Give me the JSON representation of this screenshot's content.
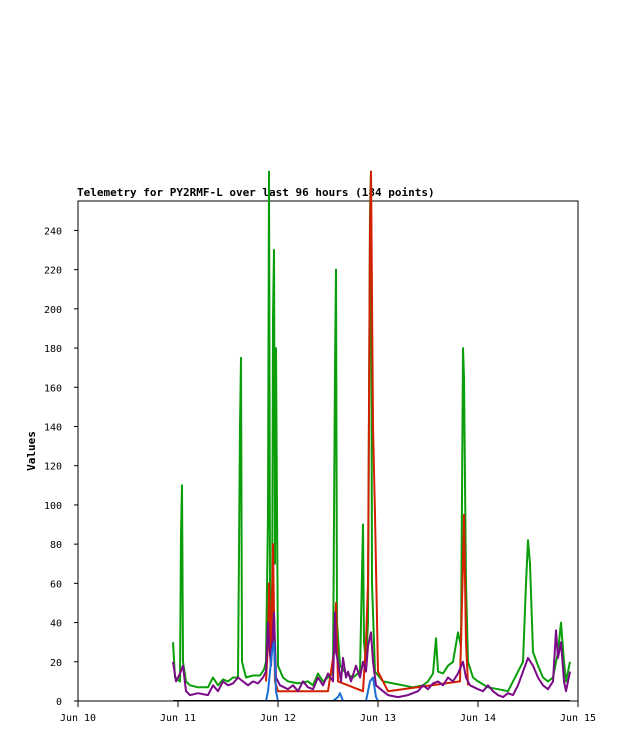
{
  "chart_data": {
    "type": "line",
    "title": "Telemetry for PY2RMF-L over last 96 hours (184 points)",
    "xlabel": "",
    "ylabel": "Values",
    "ylim": [
      0,
      255
    ],
    "xlim": [
      0,
      5
    ],
    "yticks": [
      0,
      20,
      40,
      60,
      80,
      100,
      120,
      140,
      160,
      180,
      200,
      220,
      240
    ],
    "xticks": [
      {
        "v": 0,
        "label": "Jun 10"
      },
      {
        "v": 1,
        "label": "Jun 11"
      },
      {
        "v": 2,
        "label": "Jun 12"
      },
      {
        "v": 3,
        "label": "Jun 13"
      },
      {
        "v": 4,
        "label": "Jun 14"
      },
      {
        "v": 5,
        "label": "Jun 15"
      }
    ],
    "grid": false,
    "series": [
      {
        "color": "#0a9e0a",
        "points": [
          [
            0.95,
            30
          ],
          [
            0.97,
            12
          ],
          [
            1.02,
            10
          ],
          [
            1.03,
            85
          ],
          [
            1.04,
            110
          ],
          [
            1.05,
            20
          ],
          [
            1.08,
            10
          ],
          [
            1.12,
            8
          ],
          [
            1.2,
            7
          ],
          [
            1.3,
            7
          ],
          [
            1.35,
            12
          ],
          [
            1.4,
            8
          ],
          [
            1.45,
            11
          ],
          [
            1.5,
            10
          ],
          [
            1.55,
            12
          ],
          [
            1.6,
            12
          ],
          [
            1.62,
            140
          ],
          [
            1.63,
            175
          ],
          [
            1.64,
            20
          ],
          [
            1.68,
            12
          ],
          [
            1.75,
            13
          ],
          [
            1.82,
            13
          ],
          [
            1.86,
            16
          ],
          [
            1.88,
            20
          ],
          [
            1.9,
            95
          ],
          [
            1.91,
            270
          ],
          [
            1.92,
            60
          ],
          [
            1.94,
            25
          ],
          [
            1.95,
            195
          ],
          [
            1.96,
            230
          ],
          [
            1.97,
            70
          ],
          [
            1.98,
            180
          ],
          [
            2.0,
            18
          ],
          [
            2.05,
            12
          ],
          [
            2.1,
            10
          ],
          [
            2.2,
            9
          ],
          [
            2.3,
            10
          ],
          [
            2.35,
            8
          ],
          [
            2.4,
            14
          ],
          [
            2.45,
            10
          ],
          [
            2.5,
            12
          ],
          [
            2.55,
            14
          ],
          [
            2.57,
            170
          ],
          [
            2.58,
            220
          ],
          [
            2.59,
            40
          ],
          [
            2.62,
            18
          ],
          [
            2.68,
            14
          ],
          [
            2.75,
            12
          ],
          [
            2.82,
            15
          ],
          [
            2.85,
            90
          ],
          [
            2.86,
            30
          ],
          [
            2.88,
            20
          ],
          [
            2.9,
            40
          ],
          [
            2.92,
            250
          ],
          [
            2.93,
            270
          ],
          [
            2.94,
            60
          ],
          [
            2.97,
            15
          ],
          [
            3.05,
            10
          ],
          [
            3.15,
            9
          ],
          [
            3.25,
            8
          ],
          [
            3.35,
            7
          ],
          [
            3.45,
            8
          ],
          [
            3.5,
            10
          ],
          [
            3.55,
            14
          ],
          [
            3.58,
            32
          ],
          [
            3.6,
            15
          ],
          [
            3.65,
            14
          ],
          [
            3.7,
            18
          ],
          [
            3.75,
            20
          ],
          [
            3.8,
            35
          ],
          [
            3.83,
            28
          ],
          [
            3.85,
            180
          ],
          [
            3.86,
            165
          ],
          [
            3.88,
            60
          ],
          [
            3.9,
            20
          ],
          [
            3.95,
            12
          ],
          [
            4.0,
            10
          ],
          [
            4.1,
            7
          ],
          [
            4.2,
            6
          ],
          [
            4.3,
            5
          ],
          [
            4.35,
            10
          ],
          [
            4.4,
            15
          ],
          [
            4.45,
            20
          ],
          [
            4.48,
            60
          ],
          [
            4.5,
            82
          ],
          [
            4.52,
            70
          ],
          [
            4.55,
            25
          ],
          [
            4.6,
            18
          ],
          [
            4.65,
            12
          ],
          [
            4.7,
            10
          ],
          [
            4.75,
            12
          ],
          [
            4.8,
            25
          ],
          [
            4.83,
            40
          ],
          [
            4.86,
            20
          ],
          [
            4.88,
            10
          ],
          [
            4.92,
            20
          ]
        ]
      },
      {
        "color": "#d42000",
        "points": [
          [
            1.88,
            10
          ],
          [
            1.9,
            30
          ],
          [
            1.91,
            60
          ],
          [
            1.93,
            20
          ],
          [
            1.95,
            80
          ],
          [
            1.97,
            10
          ],
          [
            2.0,
            5
          ],
          [
            2.5,
            5
          ],
          [
            2.56,
            25
          ],
          [
            2.58,
            50
          ],
          [
            2.6,
            10
          ],
          [
            2.85,
            5
          ],
          [
            2.88,
            30
          ],
          [
            2.9,
            60
          ],
          [
            2.92,
            240
          ],
          [
            2.93,
            270
          ],
          [
            2.95,
            140
          ],
          [
            2.97,
            95
          ],
          [
            3.0,
            15
          ],
          [
            3.1,
            5
          ],
          [
            3.82,
            10
          ],
          [
            3.85,
            70
          ],
          [
            3.86,
            95
          ],
          [
            3.88,
            30
          ],
          [
            3.9,
            8
          ]
        ]
      },
      {
        "color": "#7a0a86",
        "points": [
          [
            0.95,
            20
          ],
          [
            0.98,
            10
          ],
          [
            1.02,
            14
          ],
          [
            1.05,
            18
          ],
          [
            1.08,
            5
          ],
          [
            1.12,
            3
          ],
          [
            1.2,
            4
          ],
          [
            1.3,
            3
          ],
          [
            1.35,
            8
          ],
          [
            1.4,
            5
          ],
          [
            1.45,
            10
          ],
          [
            1.5,
            8
          ],
          [
            1.55,
            9
          ],
          [
            1.6,
            12
          ],
          [
            1.65,
            10
          ],
          [
            1.7,
            8
          ],
          [
            1.75,
            10
          ],
          [
            1.8,
            9
          ],
          [
            1.85,
            12
          ],
          [
            1.88,
            15
          ],
          [
            1.9,
            40
          ],
          [
            1.91,
            30
          ],
          [
            1.93,
            18
          ],
          [
            1.96,
            45
          ],
          [
            1.98,
            12
          ],
          [
            2.02,
            8
          ],
          [
            2.1,
            6
          ],
          [
            2.15,
            8
          ],
          [
            2.2,
            5
          ],
          [
            2.25,
            10
          ],
          [
            2.3,
            7
          ],
          [
            2.35,
            6
          ],
          [
            2.4,
            12
          ],
          [
            2.45,
            8
          ],
          [
            2.5,
            14
          ],
          [
            2.55,
            10
          ],
          [
            2.57,
            45
          ],
          [
            2.58,
            25
          ],
          [
            2.6,
            20
          ],
          [
            2.63,
            10
          ],
          [
            2.65,
            22
          ],
          [
            2.68,
            12
          ],
          [
            2.7,
            15
          ],
          [
            2.73,
            10
          ],
          [
            2.78,
            18
          ],
          [
            2.82,
            12
          ],
          [
            2.85,
            20
          ],
          [
            2.88,
            15
          ],
          [
            2.9,
            28
          ],
          [
            2.93,
            35
          ],
          [
            2.95,
            20
          ],
          [
            2.98,
            8
          ],
          [
            3.05,
            5
          ],
          [
            3.1,
            3
          ],
          [
            3.2,
            2
          ],
          [
            3.3,
            3
          ],
          [
            3.4,
            5
          ],
          [
            3.45,
            8
          ],
          [
            3.5,
            6
          ],
          [
            3.55,
            9
          ],
          [
            3.6,
            10
          ],
          [
            3.65,
            8
          ],
          [
            3.7,
            12
          ],
          [
            3.75,
            10
          ],
          [
            3.8,
            14
          ],
          [
            3.85,
            20
          ],
          [
            3.88,
            12
          ],
          [
            3.92,
            8
          ],
          [
            4.0,
            6
          ],
          [
            4.05,
            5
          ],
          [
            4.1,
            8
          ],
          [
            4.15,
            5
          ],
          [
            4.2,
            3
          ],
          [
            4.25,
            2
          ],
          [
            4.3,
            4
          ],
          [
            4.35,
            3
          ],
          [
            4.4,
            8
          ],
          [
            4.45,
            15
          ],
          [
            4.5,
            22
          ],
          [
            4.55,
            18
          ],
          [
            4.6,
            12
          ],
          [
            4.65,
            8
          ],
          [
            4.7,
            6
          ],
          [
            4.75,
            10
          ],
          [
            4.78,
            36
          ],
          [
            4.8,
            22
          ],
          [
            4.83,
            30
          ],
          [
            4.86,
            10
          ],
          [
            4.88,
            5
          ],
          [
            4.92,
            15
          ]
        ]
      },
      {
        "color": "#1a6fd4",
        "points": [
          [
            1.88,
            0
          ],
          [
            1.9,
            5
          ],
          [
            1.92,
            15
          ],
          [
            1.94,
            25
          ],
          [
            1.96,
            30
          ],
          [
            1.98,
            5
          ],
          [
            2.0,
            0
          ],
          [
            2.55,
            0
          ],
          [
            2.6,
            2
          ],
          [
            2.62,
            4
          ],
          [
            2.65,
            0
          ],
          [
            2.88,
            0
          ],
          [
            2.9,
            5
          ],
          [
            2.92,
            10
          ],
          [
            2.95,
            12
          ],
          [
            2.98,
            2
          ],
          [
            3.0,
            0
          ]
        ]
      },
      {
        "color": "#000000",
        "points": [
          [
            0.95,
            0
          ],
          [
            4.92,
            0
          ]
        ]
      }
    ]
  }
}
